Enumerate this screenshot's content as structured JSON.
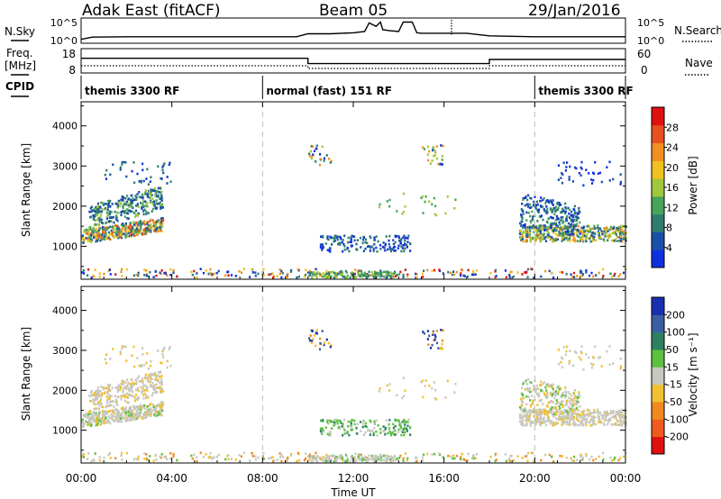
{
  "header": {
    "station": "Adak East (fitACF)",
    "beam": "Beam 05",
    "date": "29/Jan/2016"
  },
  "panels": {
    "nsky": {
      "label": "N.Sky",
      "ticks_left": [
        "10^5",
        "10^0"
      ],
      "ticks_right": [
        "10^5",
        "10^0"
      ],
      "right_label": "N.Search"
    },
    "freq": {
      "label_line1": "Freq.",
      "label_line2": "[MHz]",
      "ticks_left": [
        "18",
        "8"
      ],
      "ticks_right": [
        "60",
        "0"
      ],
      "right_label": "Nave"
    },
    "cpid": {
      "label": "CPID",
      "segments": [
        {
          "start": 0,
          "end": 8,
          "text": "themis 3300 RF"
        },
        {
          "start": 8,
          "end": 20,
          "text": "normal (fast) 151 RF"
        },
        {
          "start": 20,
          "end": 24,
          "text": "themis 3300 RF"
        }
      ]
    }
  },
  "axes": {
    "xlabel": "Time UT",
    "xticks": [
      "00:00",
      "04:00",
      "08:00",
      "12:00",
      "16:00",
      "20:00",
      "00:00"
    ],
    "ylabel": "Slant Range [km]",
    "yticks": [
      "1000",
      "2000",
      "3000",
      "4000"
    ]
  },
  "colorbars": {
    "power": {
      "label": "Power [dB]",
      "ticks": [
        "4",
        "8",
        "12",
        "16",
        "20",
        "24",
        "28"
      ],
      "colors": [
        "#1030e0",
        "#1a4fa8",
        "#2e7d6e",
        "#4aa35a",
        "#a0c83c",
        "#f0c020",
        "#f09020",
        "#e85020",
        "#e01010"
      ]
    },
    "velocity": {
      "label": "Velocity [m s⁻¹]",
      "ticks": [
        "200",
        "100",
        "50",
        "15",
        "-15",
        "-50",
        "-100",
        "-200"
      ],
      "colors": [
        "#1a2fb0",
        "#3a5fa0",
        "#2e8060",
        "#5cc040",
        "#c8c8c0",
        "#f0c030",
        "#f08a20",
        "#f05a20",
        "#e01010"
      ]
    }
  },
  "chart_data": [
    {
      "type": "line",
      "title": "N.Sky",
      "x_range": [
        0,
        24
      ],
      "yscale": "log",
      "ylim": [
        1,
        100000
      ],
      "series": [
        {
          "name": "N.Sky",
          "x": [
            0,
            0.5,
            2,
            4,
            6,
            8,
            9.5,
            10,
            11,
            12,
            12.5,
            12.7,
            13.0,
            13.2,
            13.3,
            13.6,
            14.0,
            14.2,
            14.6,
            14.8,
            15,
            16,
            17,
            18,
            20,
            22,
            24
          ],
          "y": [
            3,
            10,
            12,
            12,
            12,
            12,
            12,
            60,
            60,
            100,
            200,
            20000,
            3000,
            30000,
            500,
            300,
            200,
            30000,
            30000,
            100,
            80,
            80,
            80,
            20,
            12,
            12,
            12
          ]
        }
      ]
    },
    {
      "type": "line",
      "title": "Freq.",
      "x_range": [
        0,
        24
      ],
      "ylim": [
        8,
        18
      ],
      "series": [
        {
          "name": "Freq.",
          "x": [
            0,
            10,
            10,
            18,
            18,
            24
          ],
          "y": [
            14.5,
            14.5,
            11.8,
            11.8,
            13.9,
            13.9
          ]
        }
      ]
    },
    {
      "type": "heatmap",
      "title": "Power [dB]",
      "xlabel": "Time UT",
      "ylabel": "Slant Range [km]",
      "x_range": [
        0,
        24
      ],
      "ylim": [
        180,
        4600
      ],
      "clim": [
        0,
        30
      ],
      "regions": [
        {
          "t": [
            0.0,
            3.6
          ],
          "r": [
            1000,
            2300
          ],
          "values": "8-24"
        },
        {
          "t": [
            19.3,
            24.0
          ],
          "r": [
            1000,
            2300
          ],
          "values": "8-24"
        },
        {
          "t": [
            10.5,
            14.5
          ],
          "r": [
            850,
            1250
          ],
          "values": "4-12"
        },
        {
          "t": [
            10.0,
            16.0
          ],
          "r": [
            3000,
            3500
          ],
          "values": "8-24"
        }
      ]
    },
    {
      "type": "heatmap",
      "title": "Velocity [m s⁻¹]",
      "xlabel": "Time UT",
      "ylabel": "Slant Range [km]",
      "x_range": [
        0,
        24
      ],
      "ylim": [
        180,
        4600
      ],
      "clim": [
        -200,
        200
      ],
      "regions": [
        {
          "t": [
            0.0,
            3.6
          ],
          "r": [
            1000,
            2300
          ],
          "values": "-15 to 15"
        },
        {
          "t": [
            19.3,
            24.0
          ],
          "r": [
            1000,
            2300
          ],
          "values": "-15 to 15"
        },
        {
          "t": [
            10.5,
            14.5
          ],
          "r": [
            850,
            1250
          ],
          "values": "15-100"
        }
      ]
    }
  ]
}
